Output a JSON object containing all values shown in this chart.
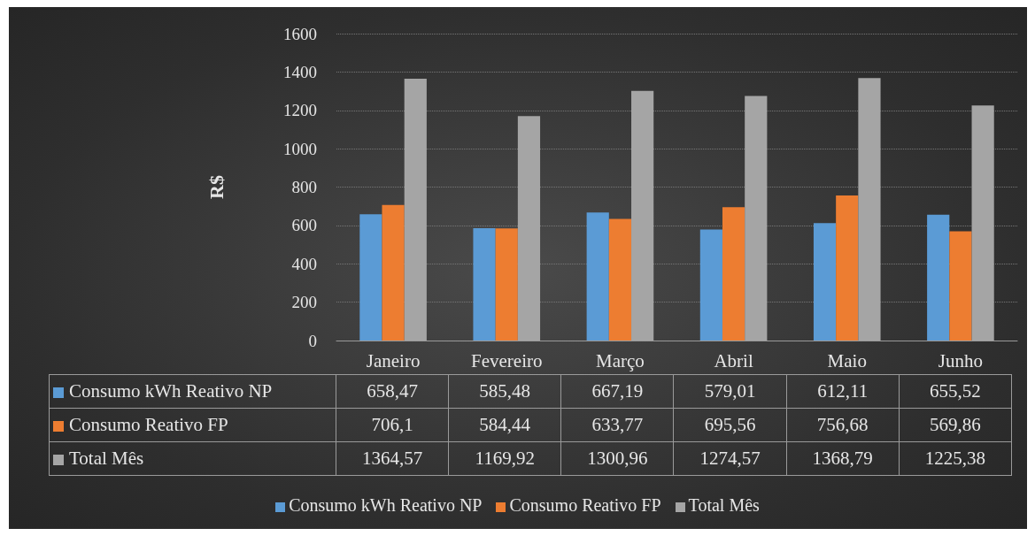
{
  "chart_data": {
    "type": "bar",
    "ylabel": "R$",
    "categories": [
      "Janeiro",
      "Fevereiro",
      "Março",
      "Abril",
      "Maio",
      "Junho"
    ],
    "series": [
      {
        "name": "Consumo kWh Reativo NP",
        "color": "#5b9bd5",
        "values": [
          658.47,
          585.48,
          667.19,
          579.01,
          612.11,
          655.52
        ],
        "value_labels": [
          "658,47",
          "585,48",
          "667,19",
          "579,01",
          "612,11",
          "655,52"
        ]
      },
      {
        "name": "Consumo Reativo FP",
        "color": "#ed7d31",
        "values": [
          706.1,
          584.44,
          633.77,
          695.56,
          756.68,
          569.86
        ],
        "value_labels": [
          "706,1",
          "584,44",
          "633,77",
          "695,56",
          "756,68",
          "569,86"
        ]
      },
      {
        "name": "Total Mês",
        "color": "#a5a5a5",
        "values": [
          1364.57,
          1169.92,
          1300.96,
          1274.57,
          1368.79,
          1225.38
        ],
        "value_labels": [
          "1364,57",
          "1169,92",
          "1300,96",
          "1274,57",
          "1368,79",
          "1225,38"
        ]
      }
    ],
    "ylim": [
      0,
      1600
    ],
    "yticks": [
      0,
      200,
      400,
      600,
      800,
      1000,
      1200,
      1400,
      1600
    ],
    "grid": "y",
    "legend": "bottom"
  }
}
